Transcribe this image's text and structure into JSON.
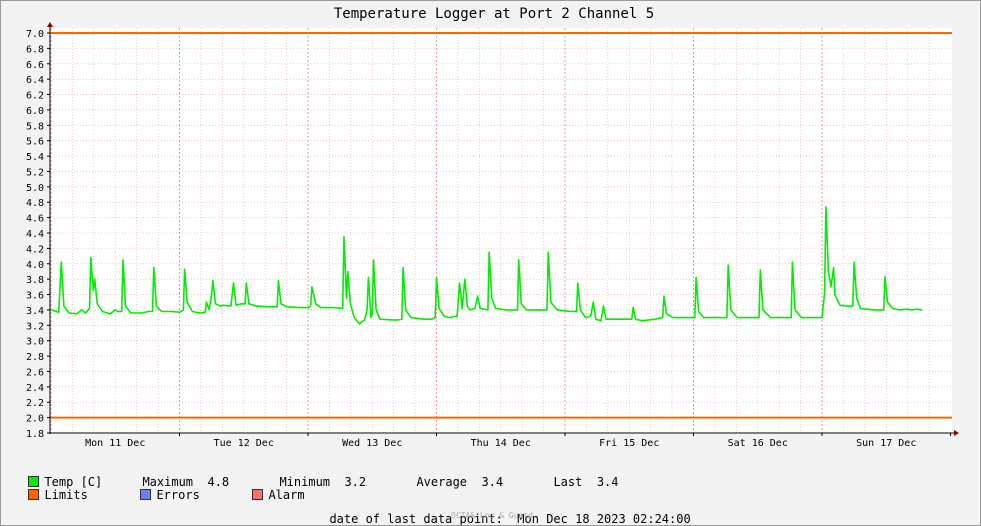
{
  "chart_data": {
    "type": "line",
    "title": "Temperature Logger at Port 2 Channel 5",
    "ylim": [
      1.8,
      7.0
    ],
    "y_ticks": [
      "1.8",
      "2.0",
      "2.2",
      "2.4",
      "2.6",
      "2.8",
      "3.0",
      "3.2",
      "3.4",
      "3.6",
      "3.8",
      "4.0",
      "4.2",
      "4.4",
      "4.6",
      "4.8",
      "5.0",
      "5.2",
      "5.4",
      "5.6",
      "5.8",
      "6.0",
      "6.2",
      "6.4",
      "6.6",
      "6.8",
      "7.0"
    ],
    "x_day_labels": [
      "Mon 11 Dec",
      "Tue 12 Dec",
      "Wed 13 Dec",
      "Thu 14 Dec",
      "Fri 15 Dec",
      "Sat 16 Dec",
      "Sun 17 Dec"
    ],
    "xlim_days": [
      0,
      7.0
    ],
    "limits": {
      "upper": 7.0,
      "lower": 2.0,
      "color": "#FF6600"
    },
    "series": [
      {
        "name": "Temp [C]",
        "color": "#00EE00",
        "points": [
          [
            0.0,
            3.4
          ],
          [
            0.06,
            3.37
          ],
          [
            0.08,
            4.02
          ],
          [
            0.1,
            3.45
          ],
          [
            0.14,
            3.36
          ],
          [
            0.2,
            3.35
          ],
          [
            0.24,
            3.4
          ],
          [
            0.27,
            3.36
          ],
          [
            0.3,
            3.42
          ],
          [
            0.31,
            4.08
          ],
          [
            0.33,
            3.65
          ],
          [
            0.34,
            3.8
          ],
          [
            0.36,
            3.48
          ],
          [
            0.4,
            3.38
          ],
          [
            0.46,
            3.35
          ],
          [
            0.5,
            3.4
          ],
          [
            0.52,
            3.38
          ],
          [
            0.55,
            3.38
          ],
          [
            0.56,
            4.05
          ],
          [
            0.58,
            3.45
          ],
          [
            0.62,
            3.36
          ],
          [
            0.7,
            3.36
          ],
          [
            0.76,
            3.38
          ],
          [
            0.79,
            3.38
          ],
          [
            0.8,
            3.95
          ],
          [
            0.82,
            3.45
          ],
          [
            0.86,
            3.38
          ],
          [
            0.94,
            3.38
          ],
          [
            1.0,
            3.37
          ],
          [
            1.03,
            3.4
          ],
          [
            1.04,
            3.93
          ],
          [
            1.06,
            3.5
          ],
          [
            1.1,
            3.38
          ],
          [
            1.16,
            3.36
          ],
          [
            1.2,
            3.37
          ],
          [
            1.21,
            3.5
          ],
          [
            1.23,
            3.4
          ],
          [
            1.25,
            3.6
          ],
          [
            1.26,
            3.78
          ],
          [
            1.28,
            3.48
          ],
          [
            1.32,
            3.45
          ],
          [
            1.34,
            3.46
          ],
          [
            1.4,
            3.45
          ],
          [
            1.42,
            3.75
          ],
          [
            1.44,
            3.46
          ],
          [
            1.48,
            3.48
          ],
          [
            1.51,
            3.48
          ],
          [
            1.52,
            3.75
          ],
          [
            1.54,
            3.48
          ],
          [
            1.6,
            3.45
          ],
          [
            1.7,
            3.44
          ],
          [
            1.76,
            3.44
          ],
          [
            1.77,
            3.78
          ],
          [
            1.79,
            3.48
          ],
          [
            1.84,
            3.44
          ],
          [
            1.94,
            3.43
          ],
          [
            2.0,
            3.43
          ],
          [
            2.02,
            3.45
          ],
          [
            2.03,
            3.7
          ],
          [
            2.06,
            3.48
          ],
          [
            2.1,
            3.43
          ],
          [
            2.2,
            3.43
          ],
          [
            2.27,
            3.42
          ],
          [
            2.28,
            4.35
          ],
          [
            2.3,
            3.55
          ],
          [
            2.31,
            3.9
          ],
          [
            2.33,
            3.48
          ],
          [
            2.36,
            3.3
          ],
          [
            2.4,
            3.22
          ],
          [
            2.44,
            3.27
          ],
          [
            2.46,
            3.4
          ],
          [
            2.47,
            3.82
          ],
          [
            2.49,
            3.3
          ],
          [
            2.5,
            3.35
          ],
          [
            2.51,
            4.05
          ],
          [
            2.53,
            3.4
          ],
          [
            2.56,
            3.28
          ],
          [
            2.66,
            3.27
          ],
          [
            2.7,
            3.27
          ],
          [
            2.73,
            3.28
          ],
          [
            2.74,
            3.95
          ],
          [
            2.76,
            3.4
          ],
          [
            2.8,
            3.3
          ],
          [
            2.9,
            3.28
          ],
          [
            2.96,
            3.28
          ],
          [
            2.99,
            3.3
          ],
          [
            3.0,
            3.82
          ],
          [
            3.02,
            3.42
          ],
          [
            3.06,
            3.32
          ],
          [
            3.1,
            3.3
          ],
          [
            3.16,
            3.32
          ],
          [
            3.18,
            3.75
          ],
          [
            3.2,
            3.42
          ],
          [
            3.22,
            3.8
          ],
          [
            3.24,
            3.45
          ],
          [
            3.26,
            3.4
          ],
          [
            3.3,
            3.42
          ],
          [
            3.32,
            3.58
          ],
          [
            3.34,
            3.42
          ],
          [
            3.4,
            3.4
          ],
          [
            3.41,
            4.15
          ],
          [
            3.43,
            3.55
          ],
          [
            3.46,
            3.42
          ],
          [
            3.54,
            3.4
          ],
          [
            3.63,
            3.4
          ],
          [
            3.64,
            4.05
          ],
          [
            3.66,
            3.48
          ],
          [
            3.7,
            3.4
          ],
          [
            3.8,
            3.4
          ],
          [
            3.86,
            3.4
          ],
          [
            3.87,
            4.15
          ],
          [
            3.89,
            3.5
          ],
          [
            3.94,
            3.4
          ],
          [
            4.04,
            3.38
          ],
          [
            4.09,
            3.38
          ],
          [
            4.1,
            3.75
          ],
          [
            4.12,
            3.4
          ],
          [
            4.16,
            3.3
          ],
          [
            4.2,
            3.32
          ],
          [
            4.22,
            3.5
          ],
          [
            4.24,
            3.28
          ],
          [
            4.28,
            3.26
          ],
          [
            4.3,
            3.45
          ],
          [
            4.32,
            3.28
          ],
          [
            4.36,
            3.28
          ],
          [
            4.46,
            3.28
          ],
          [
            4.52,
            3.28
          ],
          [
            4.53,
            3.43
          ],
          [
            4.55,
            3.28
          ],
          [
            4.6,
            3.26
          ],
          [
            4.7,
            3.28
          ],
          [
            4.76,
            3.3
          ],
          [
            4.77,
            3.58
          ],
          [
            4.79,
            3.35
          ],
          [
            4.84,
            3.3
          ],
          [
            4.94,
            3.3
          ],
          [
            5.01,
            3.3
          ],
          [
            5.02,
            3.82
          ],
          [
            5.04,
            3.38
          ],
          [
            5.08,
            3.3
          ],
          [
            5.18,
            3.3
          ],
          [
            5.26,
            3.3
          ],
          [
            5.27,
            3.98
          ],
          [
            5.29,
            3.4
          ],
          [
            5.34,
            3.3
          ],
          [
            5.44,
            3.3
          ],
          [
            5.51,
            3.3
          ],
          [
            5.52,
            3.92
          ],
          [
            5.54,
            3.4
          ],
          [
            5.6,
            3.3
          ],
          [
            5.7,
            3.3
          ],
          [
            5.76,
            3.3
          ],
          [
            5.77,
            4.02
          ],
          [
            5.79,
            3.4
          ],
          [
            5.84,
            3.3
          ],
          [
            5.94,
            3.3
          ],
          [
            6.0,
            3.3
          ],
          [
            6.02,
            3.62
          ],
          [
            6.03,
            4.74
          ],
          [
            6.05,
            3.9
          ],
          [
            6.07,
            3.7
          ],
          [
            6.09,
            3.95
          ],
          [
            6.1,
            3.6
          ],
          [
            6.14,
            3.46
          ],
          [
            6.2,
            3.45
          ],
          [
            6.24,
            3.45
          ],
          [
            6.25,
            4.02
          ],
          [
            6.27,
            3.55
          ],
          [
            6.3,
            3.42
          ],
          [
            6.4,
            3.4
          ],
          [
            6.48,
            3.4
          ],
          [
            6.49,
            3.83
          ],
          [
            6.51,
            3.5
          ],
          [
            6.55,
            3.42
          ],
          [
            6.6,
            3.4
          ],
          [
            6.66,
            3.41
          ],
          [
            6.7,
            3.4
          ],
          [
            6.74,
            3.41
          ],
          [
            6.78,
            3.4
          ]
        ]
      }
    ]
  },
  "legend": {
    "temp_label": "Temp [C]",
    "temp_color": "#00EE00",
    "max_label": "Maximum",
    "max_value": "4.8",
    "min_label": "Minimum",
    "min_value": "3.2",
    "avg_label": "Average",
    "avg_value": "3.4",
    "last_label": "Last",
    "last_value": "3.4",
    "limits_label": "Limits",
    "limits_color": "#FF6600",
    "errors_label": "Errors",
    "errors_color": "#6C7FFF",
    "alarm_label": "Alarm",
    "alarm_color": "#FF6F6F"
  },
  "footer": {
    "last_data_label": "date of last data point:",
    "last_data_value": "Mon Dec 18 2023 02:24:00",
    "watermark": "OCTA& Log & Guard"
  }
}
